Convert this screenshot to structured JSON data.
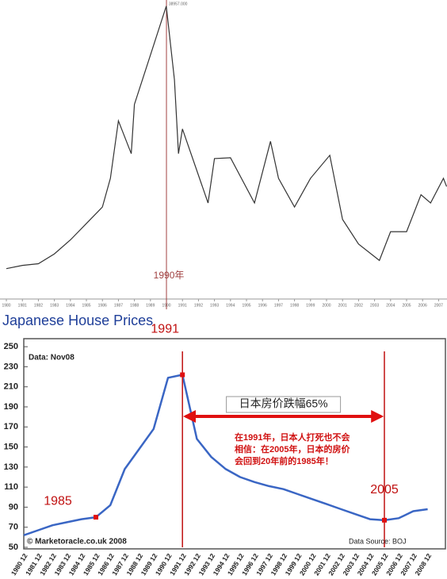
{
  "chart_data": [
    {
      "type": "line",
      "color": "#333333",
      "x": [
        1980,
        1981,
        1982,
        1983,
        1984,
        1985,
        1986,
        1986.5,
        1987,
        1987.8,
        1988,
        1989,
        1989.99,
        1990.5,
        1990.75,
        1991,
        1992.6,
        1993,
        1994,
        1995.5,
        1996.5,
        1997,
        1998,
        1999,
        2000.2,
        2001,
        2002,
        2003.3,
        2004,
        2005,
        2005.9,
        2006.5,
        2007.3,
        2007.5
      ],
      "values": [
        7000,
        7400,
        7600,
        8800,
        10500,
        12500,
        14500,
        18000,
        25000,
        21000,
        27000,
        33000,
        38957,
        30000,
        21000,
        24000,
        15000,
        20400,
        20500,
        15000,
        22500,
        18000,
        14500,
        18000,
        20800,
        13000,
        10000,
        8000,
        11500,
        11500,
        16000,
        15000,
        18000,
        17000
      ],
      "xlim": [
        1979.8,
        2007.5
      ],
      "ylim": [
        3500,
        39700
      ],
      "xticks": [
        1980,
        1981,
        1982,
        1983,
        1984,
        1985,
        1986,
        1987,
        1988,
        1989,
        1990,
        1991,
        1992,
        1993,
        1994,
        1995,
        1996,
        1997,
        1998,
        1999,
        2000,
        2001,
        2002,
        2003,
        2004,
        2005,
        2006,
        2007
      ],
      "marker_line": {
        "x": 1990,
        "label": "1990年"
      },
      "peak_label": "38957.000"
    },
    {
      "type": "line",
      "title": "Japanese House Prices",
      "color": "#3a66c4",
      "categories": [
        "1980 12",
        "1981 12",
        "1982 12",
        "1983 12",
        "1984 12",
        "1985 12",
        "1986 12",
        "1987 12",
        "1988 12",
        "1989 12",
        "1990 12",
        "1991 12",
        "1992 12",
        "1993 12",
        "1994 12",
        "1995 12",
        "1996 12",
        "1997 12",
        "1998 12",
        "1999 12",
        "2000 12",
        "2001 12",
        "2002 12",
        "2003 12",
        "2004 12",
        "2005 12",
        "2006 12",
        "2007 12",
        "2008 12"
      ],
      "values": [
        62,
        67,
        72,
        75,
        78,
        80,
        92,
        128,
        148,
        168,
        219,
        222,
        158,
        140,
        128,
        120,
        115,
        111,
        108,
        103,
        98,
        93,
        88,
        83,
        78,
        77,
        79,
        86,
        88
      ],
      "ylim": [
        50,
        258
      ],
      "yticks": [
        50,
        70,
        90,
        110,
        130,
        150,
        170,
        190,
        210,
        230,
        250
      ],
      "grid": false,
      "data_note": "Data: Nov08",
      "highlights": [
        {
          "label": "1985"
        },
        {
          "label": "1991",
          "line": true
        },
        {
          "label": "2005",
          "line": true
        }
      ],
      "arrow_label": "日本房价跌幅65%",
      "note_lines": [
        "在1991年，日本人打死也不会",
        "相信：在2005年，日本的房价",
        "会回到20年前的1985年！"
      ],
      "credit": "© Marketoracle.co.uk 2008",
      "source": "Data Source: BOJ"
    }
  ]
}
